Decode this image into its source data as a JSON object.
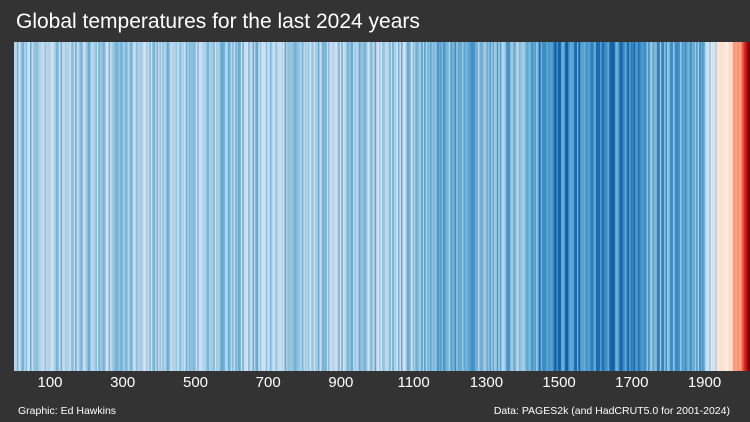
{
  "title": "Global temperatures for the last 2024 years",
  "footer": {
    "credit": "Graphic: Ed Hawkins",
    "source": "Data: PAGES2k (and HadCRUT5.0 for 2001-2024)"
  },
  "colors": {
    "background": "#333333",
    "text": "#ffffff",
    "coldest": "#08519c",
    "neutral": "#f7f7f7",
    "warmest": "#67000d"
  },
  "chart_data": {
    "type": "heatmap",
    "title": "Global temperatures for the last 2024 years",
    "xlabel": "",
    "ylabel": "",
    "x_range": [
      1,
      2024
    ],
    "xticks": [
      100,
      300,
      500,
      700,
      900,
      1100,
      1300,
      1500,
      1700,
      1900
    ],
    "color_scale": "anomaly: blue (cold) to white (neutral) to red (warm)",
    "anomaly_by_period": [
      {
        "start": 1,
        "end": 1100,
        "value": -0.3
      },
      {
        "start": 1101,
        "end": 1440,
        "value": -0.4
      },
      {
        "start": 1441,
        "end": 1720,
        "value": -0.55
      },
      {
        "start": 1721,
        "end": 1900,
        "value": -0.45
      },
      {
        "start": 1901,
        "end": 1930,
        "value": -0.2
      },
      {
        "start": 1931,
        "end": 1975,
        "value": 0.1
      },
      {
        "start": 1976,
        "end": 2000,
        "value": 0.35
      },
      {
        "start": 2001,
        "end": 2024,
        "value": 0.85
      }
    ]
  }
}
